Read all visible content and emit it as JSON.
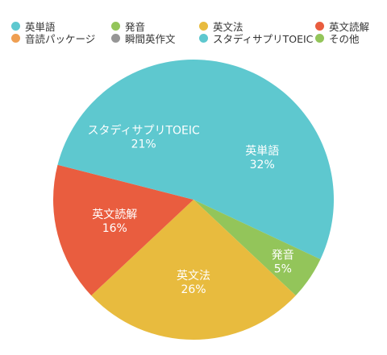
{
  "chart_data": {
    "type": "pie",
    "title": "",
    "legend_position": "top",
    "slices": [
      {
        "label": "英単語",
        "value": 32,
        "percent_text": "32%",
        "color": "#5ec8cf"
      },
      {
        "label": "発音",
        "value": 5,
        "percent_text": "5%",
        "color": "#93c55a"
      },
      {
        "label": "英文法",
        "value": 26,
        "percent_text": "26%",
        "color": "#e8bb3e"
      },
      {
        "label": "英文読解",
        "value": 16,
        "percent_text": "16%",
        "color": "#e95d3f"
      },
      {
        "label": "音読パッケージ",
        "value": 0,
        "percent_text": "",
        "color": "#ef9f52"
      },
      {
        "label": "瞬間英作文",
        "value": 0,
        "percent_text": "",
        "color": "#969696"
      },
      {
        "label": "スタディサプリTOEIC",
        "value": 21,
        "percent_text": "21%",
        "color": "#5ec8cf"
      },
      {
        "label": "その他",
        "value": 0,
        "percent_text": "",
        "color": "#93c55a"
      }
    ]
  }
}
